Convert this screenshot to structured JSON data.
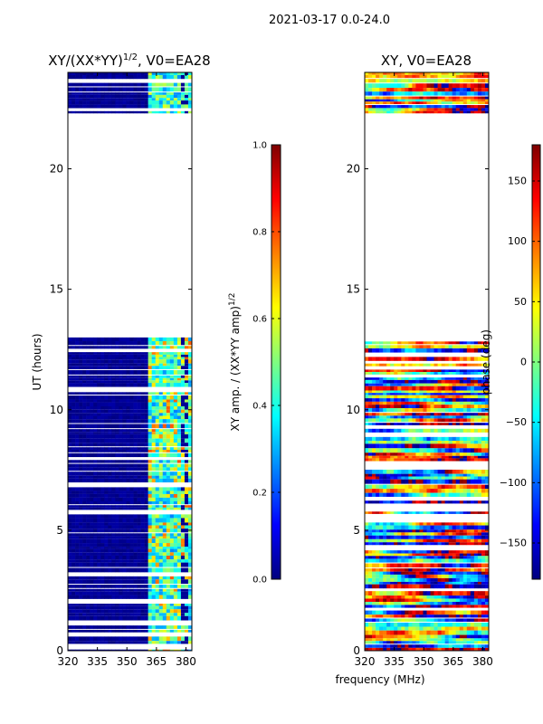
{
  "suptitle": "2021-03-17 0.0-24.0",
  "xlabel_common": "frequency (MHz)",
  "chart_data": [
    {
      "type": "heatmap",
      "title_main": "XY/(XX*YY)",
      "title_sup": "1/2",
      "title_rest": ", V0=EA28",
      "ylabel": "UT (hours)",
      "xlim": [
        320,
        383
      ],
      "ylim": [
        0,
        24
      ],
      "xticks": [
        320,
        335,
        350,
        365,
        380
      ],
      "yticks": [
        0,
        5,
        10,
        15,
        20
      ],
      "data_blocks_hours": [
        [
          0,
          13
        ],
        [
          22.3,
          24
        ]
      ],
      "colorbar": {
        "label_main": "XY amp. / (XX*YY amp)",
        "label_sup": "1/2",
        "range": [
          0.0,
          1.0
        ],
        "ticks": [
          "0.0",
          "0.2",
          "0.4",
          "0.6",
          "0.8",
          "1.0"
        ],
        "colormap": "jet"
      }
    },
    {
      "type": "heatmap",
      "title": "XY, V0=EA28",
      "xlim": [
        320,
        383
      ],
      "ylim": [
        0,
        24
      ],
      "xticks": [
        320,
        335,
        350,
        365,
        380
      ],
      "yticks": [
        0,
        5,
        10,
        15,
        20
      ],
      "data_blocks_hours": [
        [
          0,
          13
        ],
        [
          22.3,
          24
        ]
      ],
      "colorbar": {
        "label": "phase (deg)",
        "range": [
          -180,
          180
        ],
        "ticks": [
          "-150",
          "-100",
          "-50",
          "0",
          "50",
          "100",
          "150"
        ],
        "colormap": "jet"
      }
    }
  ],
  "colors": {
    "jet": [
      "#00007f",
      "#0000ff",
      "#007fff",
      "#00ffff",
      "#7fff7f",
      "#ffff00",
      "#ff7f00",
      "#ff0000",
      "#7f0000"
    ],
    "background": "#ffffff",
    "axis": "#000000"
  }
}
